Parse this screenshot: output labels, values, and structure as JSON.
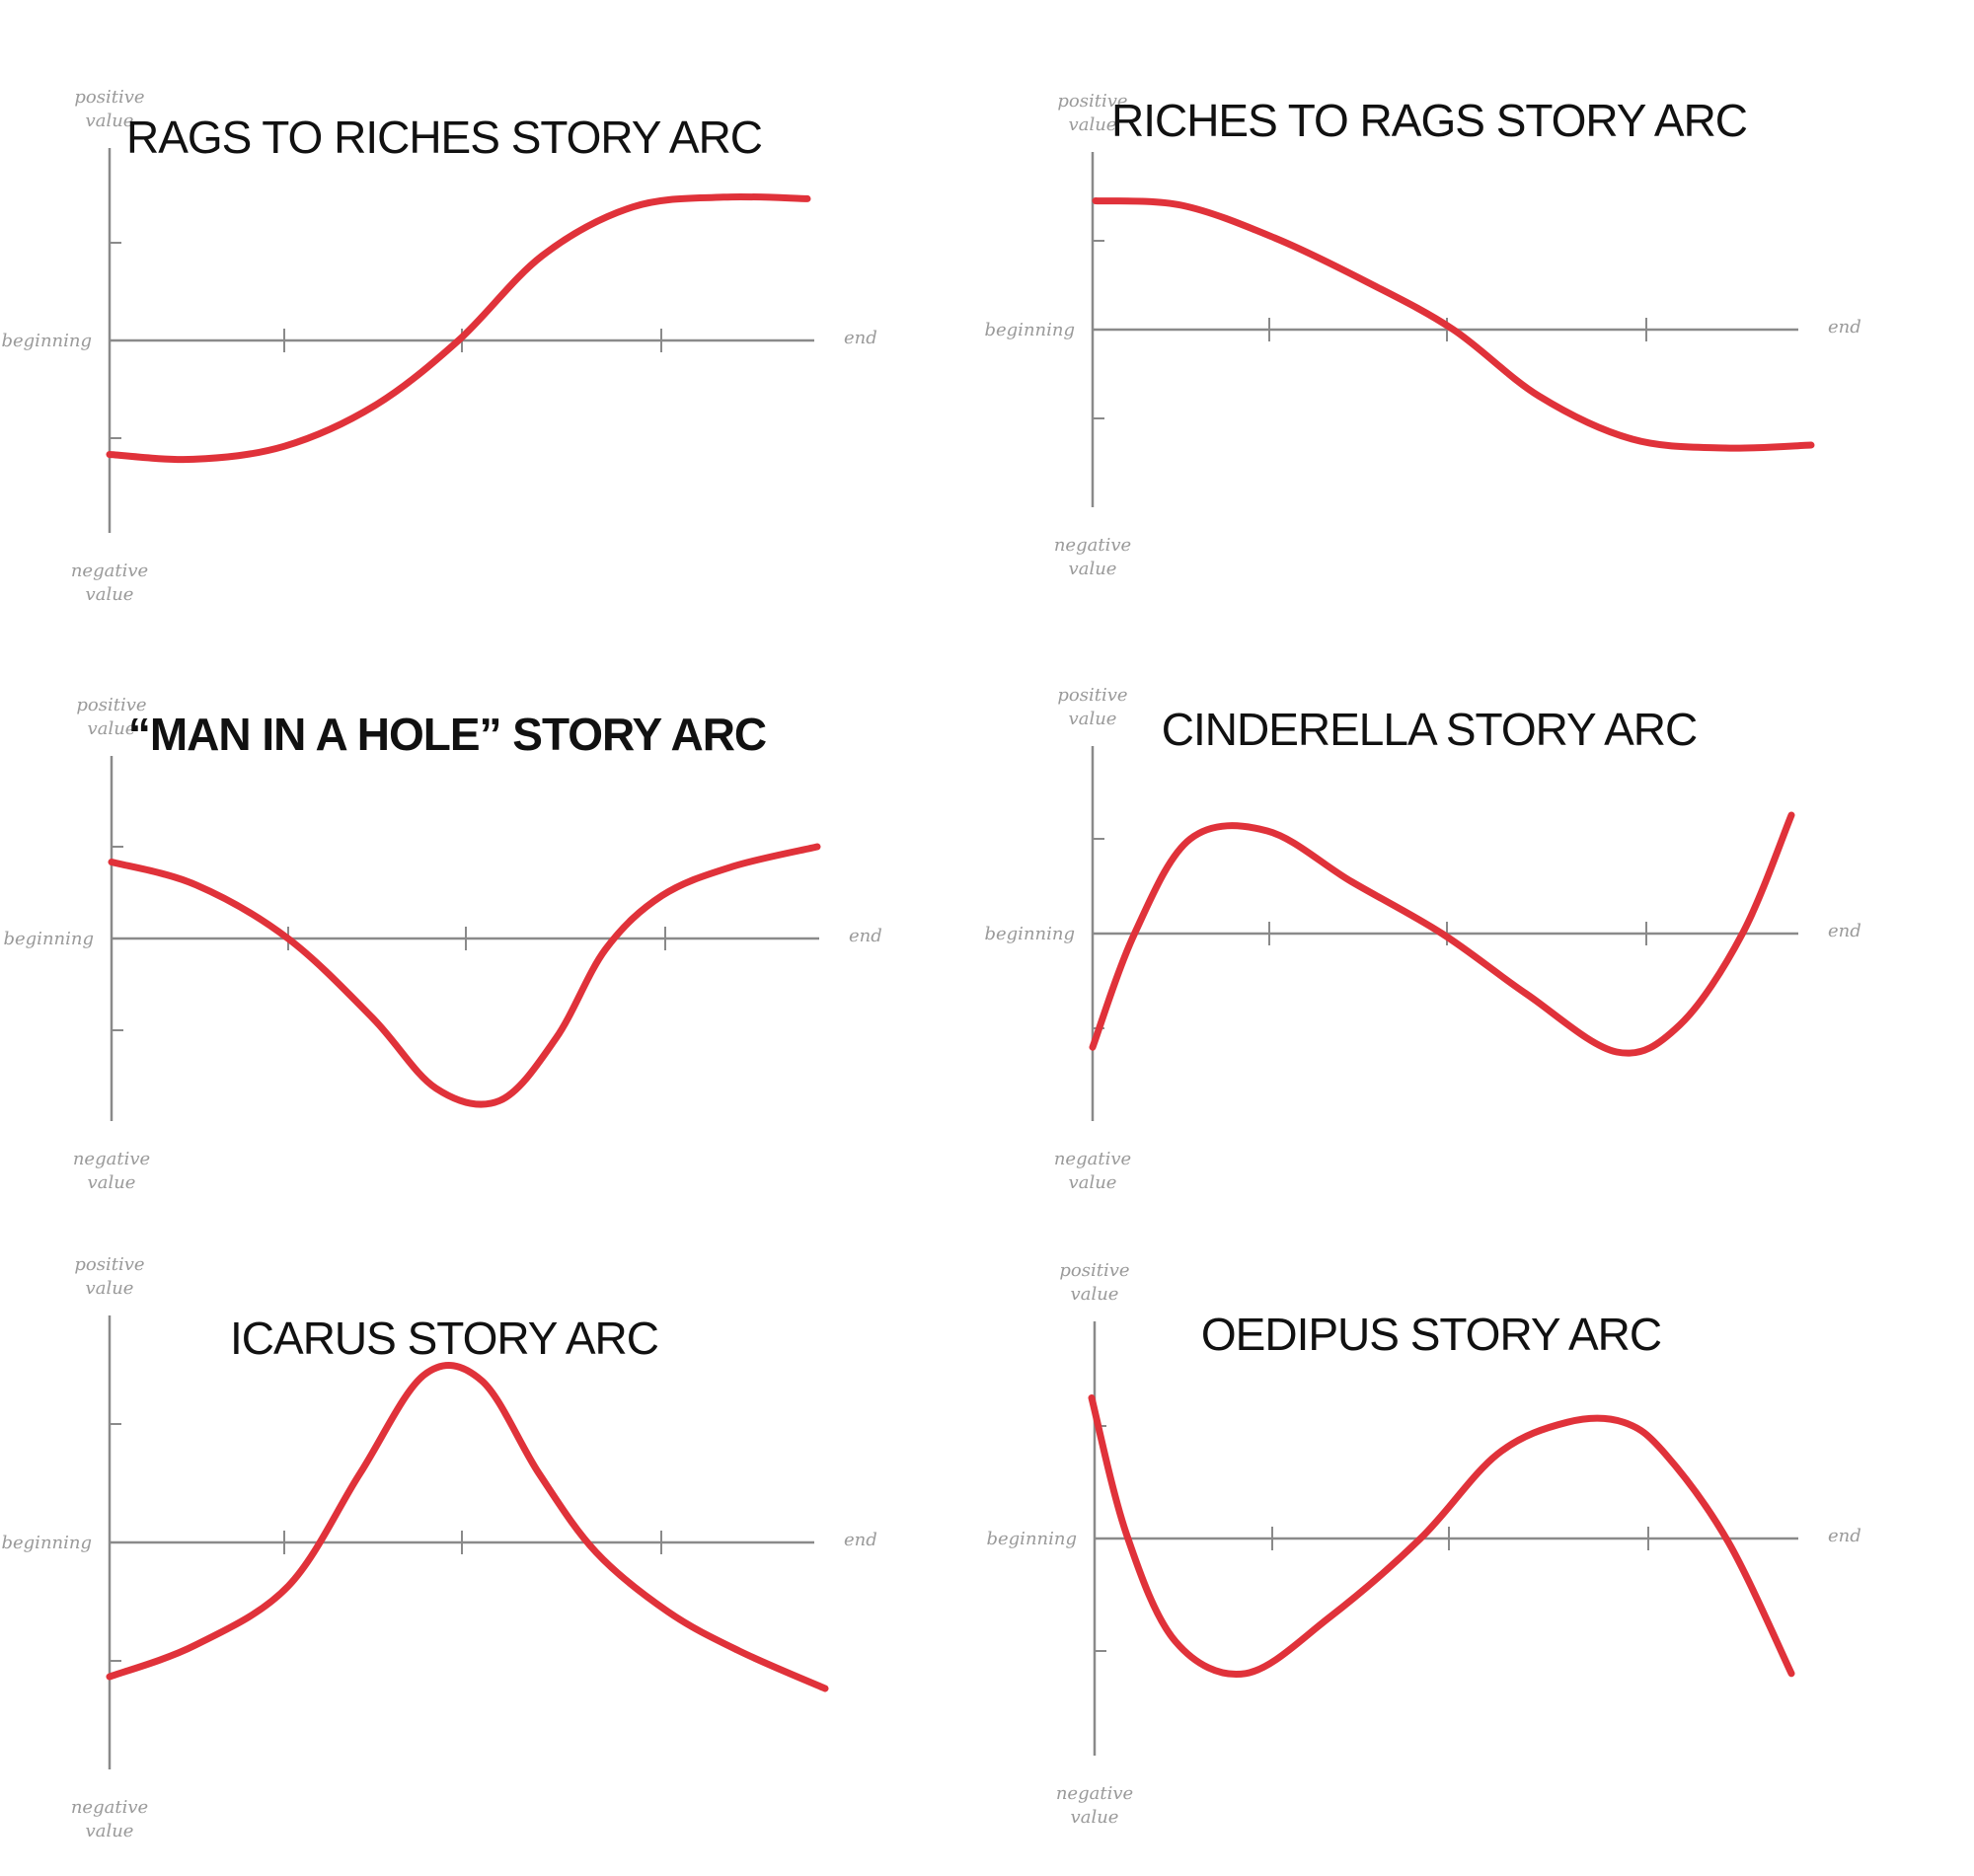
{
  "colors": {
    "curve": "#e0323a",
    "axis": "#8a8a8a",
    "label": "#9a9a9a",
    "title": "#111111"
  },
  "axis_labels": {
    "y_top_line1": "positive",
    "y_top_line2": "value",
    "y_bottom_line1": "negative",
    "y_bottom_line2": "value",
    "x_start": "beginning",
    "x_end": "end"
  },
  "chart_data": [
    {
      "type": "line",
      "title": "RAGS TO RICHES STORY ARC",
      "title_bold": false,
      "xlim": [
        0,
        1
      ],
      "ylim": [
        -1,
        1
      ],
      "grid": false,
      "x": [
        0,
        0.12,
        0.25,
        0.38,
        0.5,
        0.62,
        0.75,
        0.88,
        1
      ],
      "y": [
        -0.7,
        -0.73,
        -0.65,
        -0.4,
        0,
        0.52,
        0.82,
        0.88,
        0.87
      ]
    },
    {
      "type": "line",
      "title": "RICHES TO RAGS STORY ARC",
      "title_bold": false,
      "xlim": [
        0,
        1
      ],
      "ylim": [
        -1,
        1
      ],
      "grid": false,
      "x": [
        0,
        0.12,
        0.25,
        0.38,
        0.5,
        0.62,
        0.75,
        0.88,
        1
      ],
      "y": [
        0.87,
        0.84,
        0.62,
        0.32,
        0,
        -0.45,
        -0.74,
        -0.8,
        -0.78
      ]
    },
    {
      "type": "line",
      "title": "“MAN IN A HOLE” STORY ARC",
      "title_bold": true,
      "xlim": [
        0,
        1
      ],
      "ylim": [
        -1,
        1
      ],
      "grid": false,
      "x": [
        0,
        0.12,
        0.25,
        0.37,
        0.46,
        0.55,
        0.63,
        0.7,
        0.78,
        0.88,
        1
      ],
      "y": [
        0.5,
        0.35,
        0,
        -0.52,
        -0.98,
        -1.06,
        -0.65,
        -0.07,
        0.28,
        0.47,
        0.6
      ]
    },
    {
      "type": "line",
      "title": "CINDERELLA STORY ARC",
      "title_bold": false,
      "xlim": [
        0,
        1
      ],
      "ylim": [
        -1,
        1
      ],
      "grid": false,
      "x": [
        0,
        0.06,
        0.14,
        0.25,
        0.37,
        0.5,
        0.62,
        0.75,
        0.84,
        0.93,
        1
      ],
      "y": [
        -0.72,
        0,
        0.6,
        0.65,
        0.33,
        0,
        -0.38,
        -0.75,
        -0.58,
        0,
        0.75
      ]
    },
    {
      "type": "line",
      "title": "ICARUS STORY ARC",
      "title_bold": false,
      "xlim": [
        0,
        1
      ],
      "ylim": [
        -1,
        1
      ],
      "grid": false,
      "x": [
        0,
        0.12,
        0.25,
        0.35,
        0.44,
        0.52,
        0.6,
        0.68,
        0.78,
        0.88,
        1
      ],
      "y": [
        -0.68,
        -0.52,
        -0.22,
        0.35,
        0.85,
        0.82,
        0.35,
        -0.05,
        -0.35,
        -0.55,
        -0.74
      ]
    },
    {
      "type": "line",
      "title": "OEDIPUS STORY ARC",
      "title_bold": false,
      "xlim": [
        0,
        1
      ],
      "ylim": [
        -1,
        1
      ],
      "grid": false,
      "x": [
        0,
        0.05,
        0.12,
        0.22,
        0.34,
        0.47,
        0.58,
        0.68,
        0.76,
        0.82,
        0.91,
        1
      ],
      "y": [
        0.75,
        0.02,
        -0.55,
        -0.72,
        -0.42,
        0,
        0.45,
        0.62,
        0.62,
        0.45,
        -0.02,
        -0.72
      ]
    }
  ]
}
